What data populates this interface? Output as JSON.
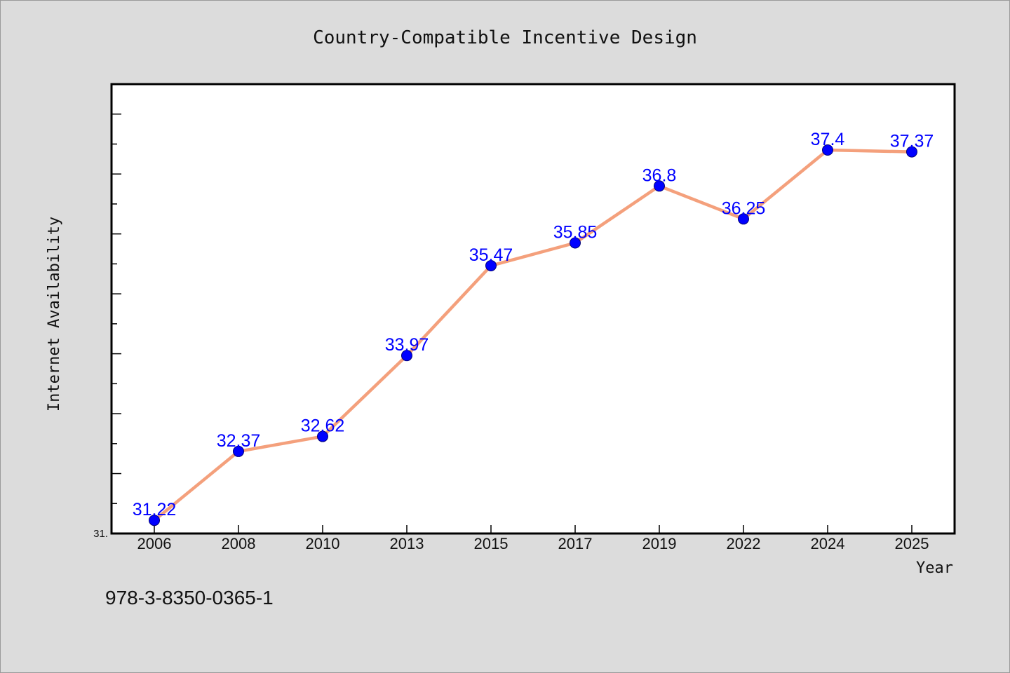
{
  "chart_data": {
    "type": "line",
    "title": "Country-Compatible Incentive Design",
    "xlabel": "Year",
    "ylabel": "Internet Availability",
    "categories": [
      "2006",
      "2008",
      "2010",
      "2013",
      "2015",
      "2017",
      "2019",
      "2022",
      "2024",
      "2025"
    ],
    "series": [
      {
        "values": [
          31.22,
          32.37,
          32.62,
          33.97,
          35.47,
          35.85,
          36.8,
          36.25,
          37.4,
          37.37
        ],
        "labels": [
          "31.22",
          "32.37",
          "32.62",
          "33.97",
          "35.47",
          "35.85",
          "36.8",
          "36.25",
          "37.4",
          "37.37"
        ],
        "line_color": "#f4a07c",
        "marker_color": "#0000ff"
      }
    ],
    "ylim": [
      31.0,
      38.5
    ],
    "y_tick_label": "31.",
    "grid": false,
    "legend": "none"
  },
  "footer_text": "978-3-8350-0365-1",
  "colors": {
    "background": "#dcdcdc",
    "plot_background": "#ffffff",
    "line": "#f4a07c",
    "marker": "#0000ff",
    "data_label": "#0000ff"
  }
}
